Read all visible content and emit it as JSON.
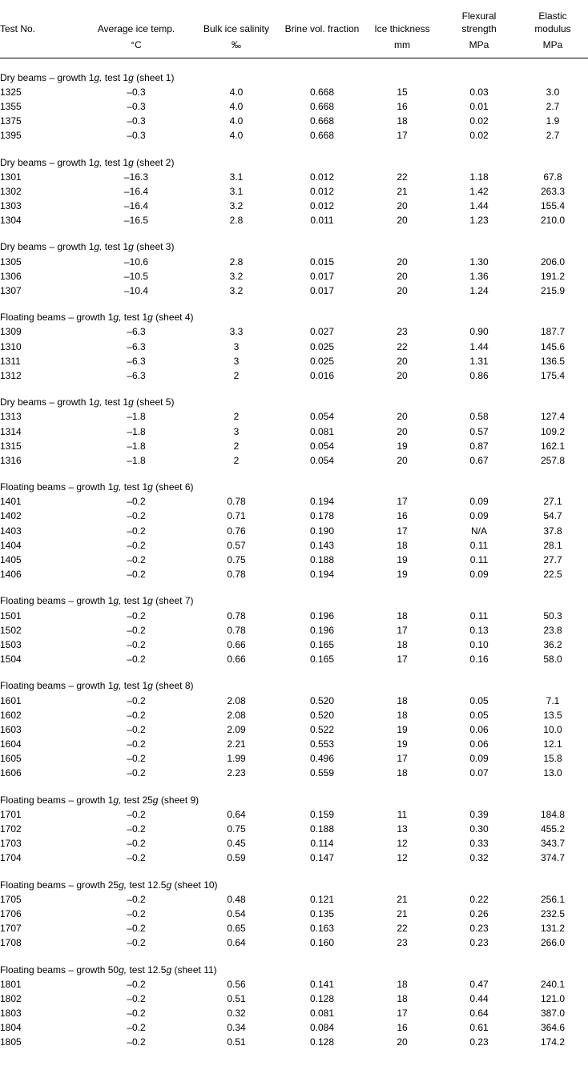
{
  "columns": [
    {
      "label": "Test No.",
      "unit": ""
    },
    {
      "label": "Average ice temp.",
      "unit": "°C"
    },
    {
      "label": "Bulk ice salinity",
      "unit": "‰"
    },
    {
      "label": "Brine vol. fraction",
      "unit": ""
    },
    {
      "label": "Ice thickness",
      "unit": "mm"
    },
    {
      "label": "Flexural strength",
      "unit": "MPa"
    },
    {
      "label": "Elastic modulus",
      "unit": "MPa"
    }
  ],
  "groups": [
    {
      "title_parts": [
        "Dry beams – growth 1",
        "g,",
        " test 1",
        "g",
        " (sheet 1)"
      ],
      "rows": [
        [
          "1325",
          "–0.3",
          "4.0",
          "0.668",
          "15",
          "0.03",
          "3.0"
        ],
        [
          "1355",
          "–0.3",
          "4.0",
          "0.668",
          "16",
          "0.01",
          "2.7"
        ],
        [
          "1375",
          "–0.3",
          "4.0",
          "0.668",
          "18",
          "0.02",
          "1.9"
        ],
        [
          "1395",
          "–0.3",
          "4.0",
          "0.668",
          "17",
          "0.02",
          "2.7"
        ]
      ]
    },
    {
      "title_parts": [
        "Dry beams – growth 1",
        "g,",
        " test 1",
        "g",
        " (sheet 2)"
      ],
      "rows": [
        [
          "1301",
          "–16.3",
          "3.1",
          "0.012",
          "22",
          "1.18",
          "67.8"
        ],
        [
          "1302",
          "–16.4",
          "3.1",
          "0.012",
          "21",
          "1.42",
          "263.3"
        ],
        [
          "1303",
          "–16.4",
          "3.2",
          "0.012",
          "20",
          "1.44",
          "155.4"
        ],
        [
          "1304",
          "–16.5",
          "2.8",
          "0.011",
          "20",
          "1.23",
          "210.0"
        ]
      ]
    },
    {
      "title_parts": [
        "Dry beams – growth 1",
        "g,",
        " test 1",
        "g",
        " (sheet 3)"
      ],
      "rows": [
        [
          "1305",
          "–10.6",
          "2.8",
          "0.015",
          "20",
          "1.30",
          "206.0"
        ],
        [
          "1306",
          "–10.5",
          "3.2",
          "0.017",
          "20",
          "1.36",
          "191.2"
        ],
        [
          "1307",
          "–10.4",
          "3.2",
          "0.017",
          "20",
          "1.24",
          "215.9"
        ]
      ]
    },
    {
      "title_parts": [
        "Floating beams – growth 1",
        "g,",
        " test 1",
        "g",
        " (sheet 4)"
      ],
      "rows": [
        [
          "1309",
          "–6.3",
          "3.3",
          "0.027",
          "23",
          "0.90",
          "187.7"
        ],
        [
          "1310",
          "–6.3",
          "3",
          "0.025",
          "22",
          "1.44",
          "145.6"
        ],
        [
          "1311",
          "–6.3",
          "3",
          "0.025",
          "20",
          "1.31",
          "136.5"
        ],
        [
          "1312",
          "–6.3",
          "2",
          "0.016",
          "20",
          "0.86",
          "175.4"
        ]
      ]
    },
    {
      "title_parts": [
        "Dry beams – growth 1",
        "g,",
        " test 1",
        "g",
        " (sheet 5)"
      ],
      "rows": [
        [
          "1313",
          "–1.8",
          "2",
          "0.054",
          "20",
          "0.58",
          "127.4"
        ],
        [
          "1314",
          "–1.8",
          "3",
          "0.081",
          "20",
          "0.57",
          "109.2"
        ],
        [
          "1315",
          "–1.8",
          "2",
          "0.054",
          "19",
          "0.87",
          "162.1"
        ],
        [
          "1316",
          "–1.8",
          "2",
          "0.054",
          "20",
          "0.67",
          "257.8"
        ]
      ]
    },
    {
      "title_parts": [
        "Floating beams – growth 1",
        "g,",
        " test 1",
        "g",
        " (sheet 6)"
      ],
      "rows": [
        [
          "1401",
          "–0.2",
          "0.78",
          "0.194",
          "17",
          "0.09",
          "27.1"
        ],
        [
          "1402",
          "–0.2",
          "0.71",
          "0.178",
          "16",
          "0.09",
          "54.7"
        ],
        [
          "1403",
          "–0.2",
          "0.76",
          "0.190",
          "17",
          "N/A",
          "37.8"
        ],
        [
          "1404",
          "–0.2",
          "0.57",
          "0.143",
          "18",
          "0.11",
          "28.1"
        ],
        [
          "1405",
          "–0.2",
          "0.75",
          "0.188",
          "19",
          "0.11",
          "27.7"
        ],
        [
          "1406",
          "–0.2",
          "0.78",
          "0.194",
          "19",
          "0.09",
          "22.5"
        ]
      ]
    },
    {
      "title_parts": [
        "Floating beams – growth 1",
        "g,",
        " test 1",
        "g",
        " (sheet 7)"
      ],
      "rows": [
        [
          "1501",
          "–0.2",
          "0.78",
          "0.196",
          "18",
          "0.11",
          "50.3"
        ],
        [
          "1502",
          "–0.2",
          "0.78",
          "0.196",
          "17",
          "0.13",
          "23.8"
        ],
        [
          "1503",
          "–0.2",
          "0.66",
          "0.165",
          "18",
          "0.10",
          "36.2"
        ],
        [
          "1504",
          "–0.2",
          "0.66",
          "0.165",
          "17",
          "0.16",
          "58.0"
        ]
      ]
    },
    {
      "title_parts": [
        "Floating beams – growth 1",
        "g,",
        " test 1",
        "g",
        " (sheet 8)"
      ],
      "rows": [
        [
          "1601",
          "–0.2",
          "2.08",
          "0.520",
          "18",
          "0.05",
          "7.1"
        ],
        [
          "1602",
          "–0.2",
          "2.08",
          "0.520",
          "18",
          "0.05",
          "13.5"
        ],
        [
          "1603",
          "–0.2",
          "2.09",
          "0.522",
          "19",
          "0.06",
          "10.0"
        ],
        [
          "1604",
          "–0.2",
          "2.21",
          "0.553",
          "19",
          "0.06",
          "12.1"
        ],
        [
          "1605",
          "–0.2",
          "1.99",
          "0.496",
          "17",
          "0.09",
          "15.8"
        ],
        [
          "1606",
          "–0.2",
          "2.23",
          "0.559",
          "18",
          "0.07",
          "13.0"
        ]
      ]
    },
    {
      "title_parts": [
        "Floating beams – growth 1",
        "g,",
        " test 25",
        "g",
        " (sheet 9)"
      ],
      "rows": [
        [
          "1701",
          "–0.2",
          "0.64",
          "0.159",
          "11",
          "0.39",
          "184.8"
        ],
        [
          "1702",
          "–0.2",
          "0.75",
          "0.188",
          "13",
          "0.30",
          "455.2"
        ],
        [
          "1703",
          "–0.2",
          "0.45",
          "0.114",
          "12",
          "0.33",
          "343.7"
        ],
        [
          "1704",
          "–0.2",
          "0.59",
          "0.147",
          "12",
          "0.32",
          "374.7"
        ]
      ]
    },
    {
      "title_parts": [
        "Floating beams – growth 25",
        "g,",
        " test 12.5",
        "g",
        " (sheet 10)"
      ],
      "rows": [
        [
          "1705",
          "–0.2",
          "0.48",
          "0.121",
          "21",
          "0.22",
          "256.1"
        ],
        [
          "1706",
          "–0.2",
          "0.54",
          "0.135",
          "21",
          "0.26",
          "232.5"
        ],
        [
          "1707",
          "–0.2",
          "0.65",
          "0.163",
          "22",
          "0.23",
          "131.2"
        ],
        [
          "1708",
          "–0.2",
          "0.64",
          "0.160",
          "23",
          "0.23",
          "266.0"
        ]
      ]
    },
    {
      "title_parts": [
        "Floating beams – growth 50",
        "g,",
        " test 12.5",
        "g",
        " (sheet 11)"
      ],
      "rows": [
        [
          "1801",
          "–0.2",
          "0.56",
          "0.141",
          "18",
          "0.47",
          "240.1"
        ],
        [
          "1802",
          "–0.2",
          "0.51",
          "0.128",
          "18",
          "0.44",
          "121.0"
        ],
        [
          "1803",
          "–0.2",
          "0.32",
          "0.081",
          "17",
          "0.64",
          "387.0"
        ],
        [
          "1804",
          "–0.2",
          "0.34",
          "0.084",
          "16",
          "0.61",
          "364.6"
        ],
        [
          "1805",
          "–0.2",
          "0.51",
          "0.128",
          "20",
          "0.23",
          "174.2"
        ]
      ]
    }
  ]
}
